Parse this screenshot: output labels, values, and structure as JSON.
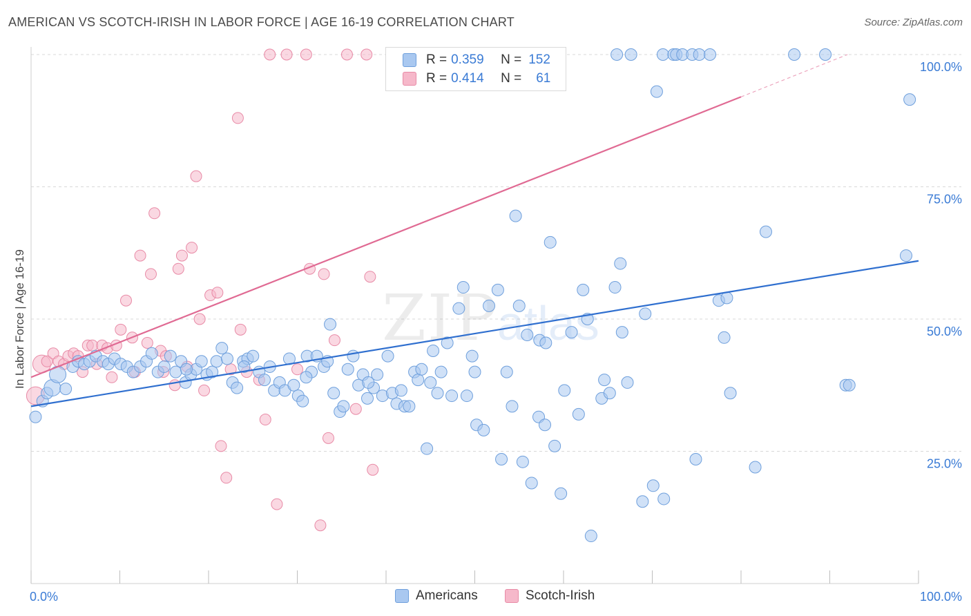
{
  "title": "AMERICAN VS SCOTCH-IRISH IN LABOR FORCE | AGE 16-19 CORRELATION CHART",
  "source": "Source: ZipAtlas.com",
  "watermark": {
    "zip": "ZIP",
    "atlas": "atlas"
  },
  "colors": {
    "blue_fill": "#a9c8f0",
    "blue_stroke": "#6e9fdc",
    "blue_line": "#2f6fcf",
    "pink_fill": "#f6b8ca",
    "pink_stroke": "#e88aa6",
    "pink_line": "#e06a93",
    "axis_text": "#3a7bd5",
    "grid": "#d8d8d8"
  },
  "legend_top": {
    "rows": [
      {
        "r_label": "R =",
        "r_value": "0.359",
        "n_label": "N =",
        "n_value": "152",
        "color": "blue"
      },
      {
        "r_label": "R =",
        "r_value": "0.414",
        "n_label": "N =",
        "n_value": "61",
        "color": "pink"
      }
    ]
  },
  "legend_bottom": [
    {
      "label": "Americans",
      "color": "blue"
    },
    {
      "label": "Scotch-Irish",
      "color": "pink"
    }
  ],
  "chart_data": {
    "type": "scatter",
    "title": "AMERICAN VS SCOTCH-IRISH IN LABOR FORCE | AGE 16-19 CORRELATION CHART",
    "xlabel": "",
    "ylabel": "In Labor Force | Age 16-19",
    "xlim": [
      0,
      100
    ],
    "ylim": [
      0,
      100
    ],
    "x_tick_labels": [
      "0.0%",
      "100.0%"
    ],
    "y_tick_labels": [
      "25.0%",
      "50.0%",
      "75.0%",
      "100.0%"
    ],
    "y_ticks": [
      25,
      50,
      75,
      100
    ],
    "grid": true,
    "legend_placement": "top-center",
    "series": [
      {
        "name": "Americans",
        "r": 0.359,
        "n": 152,
        "trend": {
          "x": [
            0,
            100
          ],
          "y": [
            33.5,
            61
          ]
        },
        "points": [
          [
            0.5,
            31.5
          ],
          [
            1.3,
            34.5
          ],
          [
            1.8,
            36
          ],
          [
            2.4,
            37
          ],
          [
            3.0,
            39.5
          ],
          [
            3.9,
            36.8
          ],
          [
            4.7,
            41
          ],
          [
            5.3,
            42
          ],
          [
            6.0,
            41.5
          ],
          [
            6.6,
            42
          ],
          [
            7.3,
            43
          ],
          [
            8.1,
            42
          ],
          [
            8.7,
            41.5
          ],
          [
            9.4,
            42.5
          ],
          [
            10.1,
            41.5
          ],
          [
            10.8,
            41
          ],
          [
            11.5,
            40
          ],
          [
            12.3,
            41
          ],
          [
            13.0,
            42
          ],
          [
            13.6,
            43.5
          ],
          [
            14.3,
            40
          ],
          [
            15.0,
            41
          ],
          [
            15.7,
            43
          ],
          [
            16.3,
            40
          ],
          [
            16.9,
            42
          ],
          [
            17.4,
            38
          ],
          [
            18.0,
            39.5
          ],
          [
            18.6,
            40.5
          ],
          [
            19.2,
            42
          ],
          [
            19.8,
            39.5
          ],
          [
            20.4,
            40
          ],
          [
            20.9,
            42
          ],
          [
            21.5,
            44.5
          ],
          [
            22.1,
            42.5
          ],
          [
            22.7,
            38
          ],
          [
            23.2,
            37
          ],
          [
            23.9,
            42
          ],
          [
            24.4,
            42.5
          ],
          [
            25.0,
            43
          ],
          [
            25.7,
            40
          ],
          [
            26.3,
            38.5
          ],
          [
            26.9,
            41
          ],
          [
            27.4,
            36.5
          ],
          [
            28.0,
            38
          ],
          [
            28.6,
            36.5
          ],
          [
            29.1,
            42.5
          ],
          [
            29.6,
            37.5
          ],
          [
            30.1,
            35.5
          ],
          [
            30.6,
            34.5
          ],
          [
            31.1,
            43
          ],
          [
            31.6,
            40
          ],
          [
            32.2,
            43
          ],
          [
            33.0,
            41
          ],
          [
            33.4,
            42
          ],
          [
            33.7,
            49
          ],
          [
            34.1,
            36
          ],
          [
            34.8,
            32.5
          ],
          [
            35.2,
            33.5
          ],
          [
            35.7,
            40.5
          ],
          [
            36.3,
            43
          ],
          [
            36.9,
            37.5
          ],
          [
            37.4,
            39.5
          ],
          [
            37.9,
            35
          ],
          [
            38.6,
            37
          ],
          [
            39.0,
            39.5
          ],
          [
            39.6,
            35.5
          ],
          [
            40.2,
            43
          ],
          [
            40.7,
            36
          ],
          [
            41.2,
            34
          ],
          [
            41.7,
            36.5
          ],
          [
            42.1,
            33.5
          ],
          [
            42.6,
            33.5
          ],
          [
            43.2,
            40
          ],
          [
            43.6,
            38.5
          ],
          [
            44.0,
            40.5
          ],
          [
            44.6,
            25.5
          ],
          [
            45.3,
            44
          ],
          [
            45.8,
            36
          ],
          [
            46.2,
            40
          ],
          [
            46.9,
            45.5
          ],
          [
            47.4,
            35.5
          ],
          [
            48.2,
            52
          ],
          [
            48.7,
            56
          ],
          [
            49.1,
            35.5
          ],
          [
            49.7,
            43
          ],
          [
            50.2,
            30
          ],
          [
            51.0,
            29
          ],
          [
            51.6,
            52.5
          ],
          [
            52.6,
            55.5
          ],
          [
            53.0,
            23.5
          ],
          [
            53.6,
            40
          ],
          [
            54.2,
            33.5
          ],
          [
            54.6,
            69.5
          ],
          [
            55.0,
            52.5
          ],
          [
            55.4,
            23
          ],
          [
            55.9,
            47
          ],
          [
            56.4,
            19
          ],
          [
            57.2,
            31.5
          ],
          [
            57.9,
            30
          ],
          [
            57.3,
            46
          ],
          [
            58.0,
            45.5
          ],
          [
            58.5,
            64.5
          ],
          [
            59.0,
            26
          ],
          [
            59.7,
            17
          ],
          [
            60.1,
            36.5
          ],
          [
            60.9,
            47.5
          ],
          [
            61.7,
            32
          ],
          [
            62.2,
            55.5
          ],
          [
            63.1,
            9
          ],
          [
            62.7,
            50
          ],
          [
            64.3,
            35
          ],
          [
            64.6,
            38.5
          ],
          [
            65.2,
            36
          ],
          [
            65.8,
            56
          ],
          [
            66.4,
            60.5
          ],
          [
            66.6,
            47.5
          ],
          [
            67.2,
            38
          ],
          [
            67.6,
            100
          ],
          [
            68.9,
            15.5
          ],
          [
            69.2,
            51
          ],
          [
            70.1,
            18.5
          ],
          [
            70.5,
            93
          ],
          [
            71.2,
            100
          ],
          [
            71.3,
            16
          ],
          [
            72.4,
            100
          ],
          [
            72.7,
            100
          ],
          [
            73.4,
            100
          ],
          [
            74.5,
            100
          ],
          [
            75.3,
            100
          ],
          [
            74.9,
            23.5
          ],
          [
            76.5,
            100
          ],
          [
            77.5,
            53.5
          ],
          [
            78.4,
            54
          ],
          [
            78.1,
            46.5
          ],
          [
            78.8,
            36
          ],
          [
            81.6,
            22
          ],
          [
            82.8,
            66.5
          ],
          [
            86.0,
            100
          ],
          [
            89.5,
            100
          ],
          [
            91.8,
            37.5
          ],
          [
            92.2,
            37.5
          ],
          [
            98.6,
            62
          ],
          [
            99.0,
            91.5
          ],
          [
            66.0,
            100
          ],
          [
            50.0,
            40
          ],
          [
            45.0,
            38
          ],
          [
            38.0,
            38
          ],
          [
            31.0,
            39
          ],
          [
            24.0,
            41
          ],
          [
            17.5,
            40.5
          ]
        ]
      },
      {
        "name": "Scotch-Irish",
        "r": 0.414,
        "n": 61,
        "trend": {
          "x": [
            0,
            80
          ],
          "y": [
            39,
            92
          ]
        },
        "trend_dashed": {
          "x": [
            80,
            92
          ],
          "y": [
            92,
            100
          ]
        },
        "points": [
          [
            0.5,
            35.5
          ],
          [
            1.2,
            41.5
          ],
          [
            1.8,
            42
          ],
          [
            2.5,
            43.5
          ],
          [
            3.1,
            42
          ],
          [
            3.7,
            41.5
          ],
          [
            4.2,
            43
          ],
          [
            4.8,
            43.5
          ],
          [
            5.3,
            43
          ],
          [
            5.8,
            40
          ],
          [
            6.4,
            45
          ],
          [
            6.9,
            45
          ],
          [
            7.4,
            41.5
          ],
          [
            8.0,
            45
          ],
          [
            8.6,
            44.5
          ],
          [
            9.1,
            39
          ],
          [
            9.6,
            45
          ],
          [
            10.1,
            48
          ],
          [
            10.7,
            53.5
          ],
          [
            11.4,
            46.5
          ],
          [
            11.7,
            40
          ],
          [
            12.3,
            62
          ],
          [
            13.1,
            45.5
          ],
          [
            13.5,
            58.5
          ],
          [
            13.9,
            70
          ],
          [
            14.6,
            44
          ],
          [
            14.9,
            40
          ],
          [
            15.2,
            43
          ],
          [
            16.2,
            37.5
          ],
          [
            16.6,
            59.5
          ],
          [
            17.0,
            62
          ],
          [
            17.6,
            41
          ],
          [
            18.1,
            63.5
          ],
          [
            18.6,
            77
          ],
          [
            19.0,
            50
          ],
          [
            19.5,
            36.5
          ],
          [
            20.2,
            54.5
          ],
          [
            21.0,
            55
          ],
          [
            21.4,
            26
          ],
          [
            22.0,
            20
          ],
          [
            22.5,
            40.5
          ],
          [
            23.3,
            88
          ],
          [
            23.6,
            48
          ],
          [
            24.3,
            40
          ],
          [
            25.7,
            38.5
          ],
          [
            26.4,
            31
          ],
          [
            26.9,
            100
          ],
          [
            27.7,
            15
          ],
          [
            28.8,
            100
          ],
          [
            30.0,
            40.5
          ],
          [
            31.0,
            100
          ],
          [
            31.4,
            59.5
          ],
          [
            32.6,
            11
          ],
          [
            33.0,
            58.5
          ],
          [
            33.5,
            27.5
          ],
          [
            34.2,
            46
          ],
          [
            35.6,
            100
          ],
          [
            36.6,
            33
          ],
          [
            37.8,
            100
          ],
          [
            38.2,
            58
          ],
          [
            38.5,
            21.5
          ]
        ]
      }
    ]
  }
}
